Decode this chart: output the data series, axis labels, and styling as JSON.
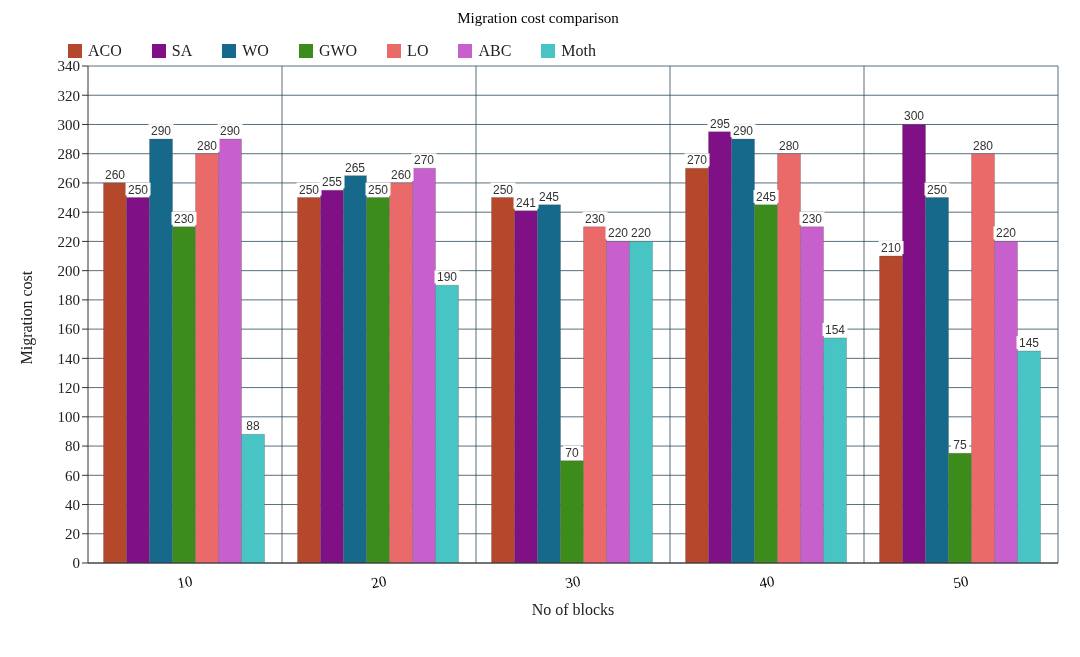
{
  "chart_data": {
    "type": "bar",
    "title": "Migration cost comparison",
    "xlabel": "No of blocks",
    "ylabel": "Migration cost",
    "categories": [
      "10",
      "20",
      "30",
      "40",
      "50"
    ],
    "series": [
      {
        "name": "ACO",
        "color": "#b5472a",
        "values": [
          260,
          250,
          250,
          270,
          210
        ]
      },
      {
        "name": "SA",
        "color": "#7f1085",
        "values": [
          250,
          255,
          241,
          295,
          300
        ]
      },
      {
        "name": "WO",
        "color": "#16698a",
        "values": [
          290,
          265,
          245,
          290,
          250
        ]
      },
      {
        "name": "GWO",
        "color": "#3c8c1c",
        "values": [
          230,
          250,
          70,
          245,
          75
        ]
      },
      {
        "name": "LO",
        "color": "#ea6a6a",
        "values": [
          280,
          260,
          230,
          280,
          280
        ]
      },
      {
        "name": "ABC",
        "color": "#c75fcc",
        "values": [
          290,
          270,
          220,
          230,
          220
        ]
      },
      {
        "name": "Moth",
        "color": "#48c4c4",
        "values": [
          88,
          190,
          220,
          154,
          145
        ]
      }
    ],
    "ylim": [
      0,
      340
    ],
    "yticks": [
      0,
      20,
      40,
      60,
      80,
      100,
      120,
      140,
      160,
      180,
      200,
      220,
      240,
      260,
      280,
      300,
      320,
      340
    ],
    "grid": true,
    "legend": "top left",
    "data_labels": true
  }
}
